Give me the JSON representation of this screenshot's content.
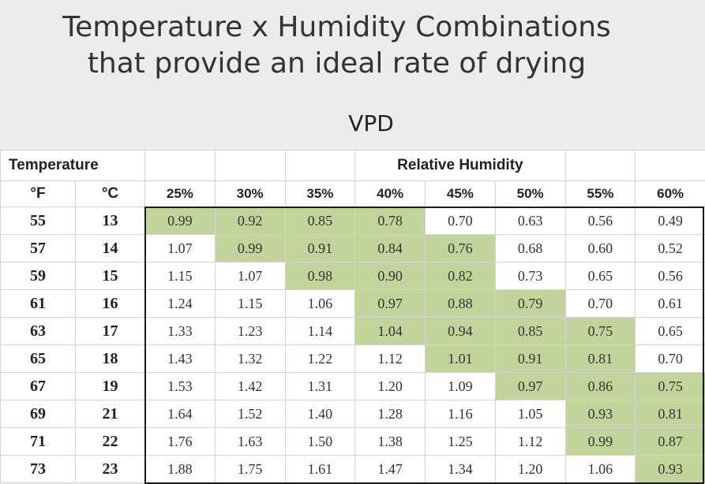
{
  "title_line1": "Temperature x Humidity Combinations",
  "title_line2": "that provide an ideal rate of drying",
  "subtitle": "VPD",
  "chart_data": {
    "type": "table",
    "header_temperature": "Temperature",
    "header_rh": "Relative Humidity",
    "unit_f": "°F",
    "unit_c": "°C",
    "columns": [
      "25%",
      "30%",
      "35%",
      "40%",
      "45%",
      "50%",
      "55%",
      "60%"
    ],
    "ideal_color": "#c3d39c",
    "rows": [
      {
        "f": "55",
        "c": "13",
        "values": [
          "0.99",
          "0.92",
          "0.85",
          "0.78",
          "0.70",
          "0.63",
          "0.56",
          "0.49"
        ],
        "ideal": [
          true,
          true,
          true,
          true,
          false,
          false,
          false,
          false
        ]
      },
      {
        "f": "57",
        "c": "14",
        "values": [
          "1.07",
          "0.99",
          "0.91",
          "0.84",
          "0.76",
          "0.68",
          "0.60",
          "0.52"
        ],
        "ideal": [
          false,
          true,
          true,
          true,
          true,
          false,
          false,
          false
        ]
      },
      {
        "f": "59",
        "c": "15",
        "values": [
          "1.15",
          "1.07",
          "0.98",
          "0.90",
          "0.82",
          "0.73",
          "0.65",
          "0.56"
        ],
        "ideal": [
          false,
          false,
          true,
          true,
          true,
          false,
          false,
          false
        ]
      },
      {
        "f": "61",
        "c": "16",
        "values": [
          "1.24",
          "1.15",
          "1.06",
          "0.97",
          "0.88",
          "0.79",
          "0.70",
          "0.61"
        ],
        "ideal": [
          false,
          false,
          false,
          true,
          true,
          true,
          false,
          false
        ]
      },
      {
        "f": "63",
        "c": "17",
        "values": [
          "1.33",
          "1.23",
          "1.14",
          "1.04",
          "0.94",
          "0.85",
          "0.75",
          "0.65"
        ],
        "ideal": [
          false,
          false,
          false,
          true,
          true,
          true,
          true,
          false
        ]
      },
      {
        "f": "65",
        "c": "18",
        "values": [
          "1.43",
          "1.32",
          "1.22",
          "1.12",
          "1.01",
          "0.91",
          "0.81",
          "0.70"
        ],
        "ideal": [
          false,
          false,
          false,
          false,
          true,
          true,
          true,
          false
        ]
      },
      {
        "f": "67",
        "c": "19",
        "values": [
          "1.53",
          "1.42",
          "1.31",
          "1.20",
          "1.09",
          "0.97",
          "0.86",
          "0.75"
        ],
        "ideal": [
          false,
          false,
          false,
          false,
          false,
          true,
          true,
          true
        ]
      },
      {
        "f": "69",
        "c": "21",
        "values": [
          "1.64",
          "1.52",
          "1.40",
          "1.28",
          "1.16",
          "1.05",
          "0.93",
          "0.81"
        ],
        "ideal": [
          false,
          false,
          false,
          false,
          false,
          false,
          true,
          true
        ]
      },
      {
        "f": "71",
        "c": "22",
        "values": [
          "1.76",
          "1.63",
          "1.50",
          "1.38",
          "1.25",
          "1.12",
          "0.99",
          "0.87"
        ],
        "ideal": [
          false,
          false,
          false,
          false,
          false,
          false,
          true,
          true
        ]
      },
      {
        "f": "73",
        "c": "23",
        "values": [
          "1.88",
          "1.75",
          "1.61",
          "1.47",
          "1.34",
          "1.20",
          "1.06",
          "0.93"
        ],
        "ideal": [
          false,
          false,
          false,
          false,
          false,
          false,
          false,
          true
        ]
      }
    ]
  }
}
